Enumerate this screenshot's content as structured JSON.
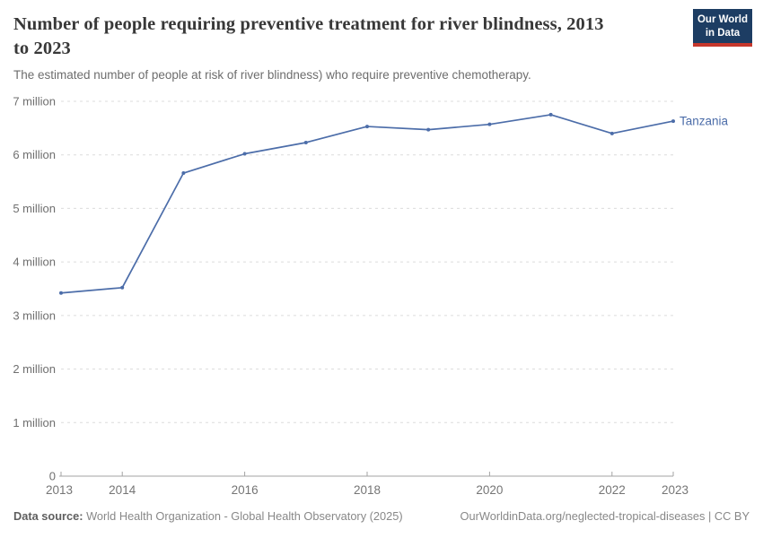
{
  "header": {
    "title": "Number of people requiring preventive treatment for river blindness, 2013 to 2023",
    "subtitle": "The estimated number of people at risk of river blindness) who require preventive chemotherapy.",
    "logo_line1": "Our World",
    "logo_line2": "in Data"
  },
  "chart_data": {
    "type": "line",
    "title": "Number of people requiring preventive treatment for river blindness, 2013 to 2023",
    "x": [
      2013,
      2014,
      2015,
      2016,
      2017,
      2018,
      2019,
      2020,
      2021,
      2022,
      2023
    ],
    "series": [
      {
        "name": "Tanzania",
        "color": "#4c6da9",
        "values": [
          3420000,
          3520000,
          5660000,
          6020000,
          6230000,
          6530000,
          6470000,
          6570000,
          6750000,
          6400000,
          6630000
        ]
      }
    ],
    "ylim": [
      0,
      7000000
    ],
    "y_ticks": [
      {
        "value": 0,
        "label": "0"
      },
      {
        "value": 1000000,
        "label": "1 million"
      },
      {
        "value": 2000000,
        "label": "2 million"
      },
      {
        "value": 3000000,
        "label": "3 million"
      },
      {
        "value": 4000000,
        "label": "4 million"
      },
      {
        "value": 5000000,
        "label": "5 million"
      },
      {
        "value": 6000000,
        "label": "6 million"
      },
      {
        "value": 7000000,
        "label": "7 million"
      }
    ],
    "x_tick_years": [
      2013,
      2014,
      2016,
      2018,
      2020,
      2022,
      2023
    ],
    "grid": "horizontal-dashed",
    "legend_position": "end-of-line"
  },
  "footer": {
    "source_label": "Data source:",
    "source_text": " World Health Organization - Global Health Observatory (2025)",
    "citation": "OurWorldinData.org/neglected-tropical-diseases | CC BY"
  },
  "colors": {
    "line": "#4c6da9",
    "logo_bg": "#1d3d63",
    "logo_accent": "#c6372c",
    "grid": "#dcdcdc",
    "axis": "#a3a3a3",
    "title_text": "#383838",
    "subtitle_text": "#6d6d6d"
  }
}
